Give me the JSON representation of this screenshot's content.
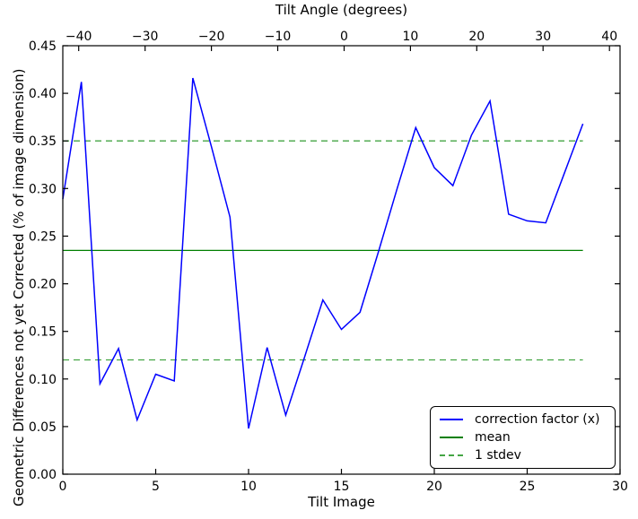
{
  "chart_data": {
    "type": "line",
    "top_axis": {
      "label": "Tilt Angle (degrees)",
      "tick_labels": [
        "−40",
        "−30",
        "−20",
        "−10",
        "0",
        "10",
        "20",
        "30",
        "40"
      ],
      "tick_values": [
        -40,
        -30,
        -20,
        -10,
        0,
        10,
        20,
        30,
        40
      ],
      "lim": [
        -42.4,
        41.6
      ]
    },
    "xlabel": "Tilt Image",
    "ylabel": "Geometric Differences not yet Corrected (% of image dimension)",
    "xlim": [
      0,
      30
    ],
    "ylim": [
      0,
      0.45
    ],
    "x_ticks": [
      "0",
      "5",
      "10",
      "15",
      "20",
      "25",
      "30"
    ],
    "y_ticks": [
      "0.00",
      "0.05",
      "0.10",
      "0.15",
      "0.20",
      "0.25",
      "0.30",
      "0.35",
      "0.40",
      "0.45"
    ],
    "x": [
      0,
      1,
      2,
      3,
      4,
      5,
      6,
      7,
      8,
      9,
      10,
      11,
      12,
      13,
      14,
      15,
      16,
      17,
      18,
      19,
      20,
      21,
      22,
      23,
      24,
      25,
      26,
      27,
      28
    ],
    "series": [
      {
        "name": "correction factor (x)",
        "type": "line",
        "color": "#0000ff",
        "values": [
          0.289,
          0.412,
          0.095,
          0.132,
          0.057,
          0.105,
          0.098,
          0.416,
          0.344,
          0.27,
          0.048,
          0.133,
          0.062,
          0.122,
          0.183,
          0.152,
          0.17,
          0.234,
          0.3,
          0.364,
          0.322,
          0.303,
          0.356,
          0.392,
          0.273,
          0.266,
          0.264,
          0.316,
          0.368
        ]
      },
      {
        "name": "mean",
        "type": "hline",
        "color": "#007f00",
        "value": 0.235,
        "x_span": [
          0,
          28
        ]
      },
      {
        "name": "1 stdev",
        "type": "hline-dashed",
        "color": "#44a544",
        "values": [
          0.35,
          0.12
        ],
        "stdev": 0.115,
        "x_span": [
          0,
          28
        ]
      }
    ],
    "legend": {
      "position": "lower-right",
      "entries": [
        {
          "label": "correction factor (x)",
          "line": "solid",
          "color": "#0000ff"
        },
        {
          "label": "mean",
          "line": "solid",
          "color": "#007f00"
        },
        {
          "label": "1 stdev",
          "line": "dashed",
          "color": "#44a544"
        }
      ]
    },
    "frame_color": "#000000",
    "background": "#ffffff"
  }
}
